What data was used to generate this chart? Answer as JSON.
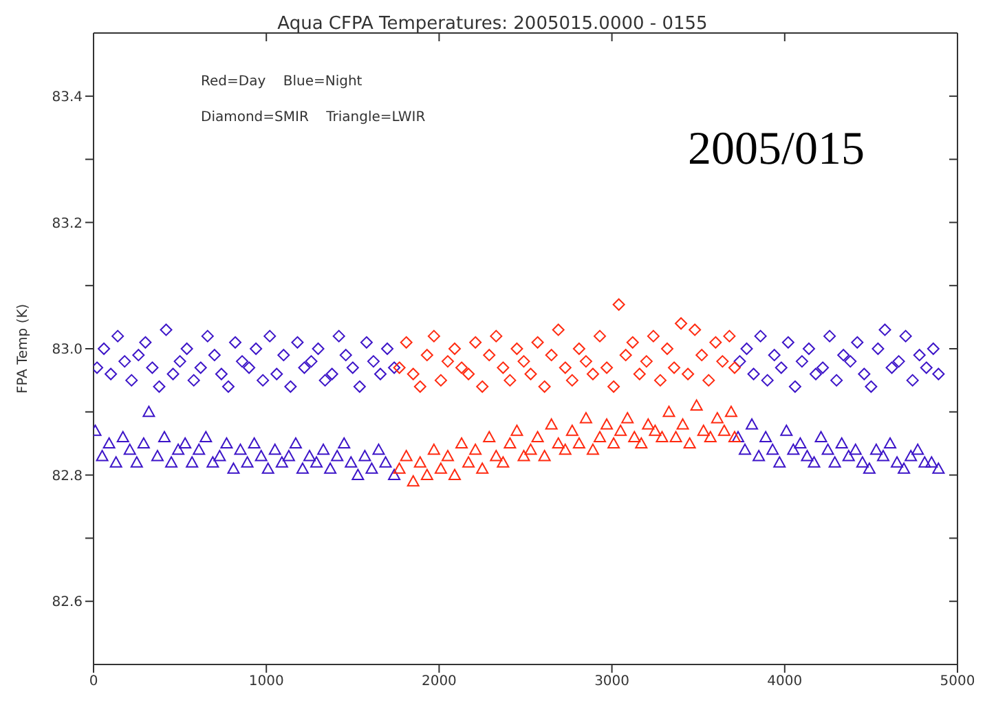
{
  "chart_data": {
    "type": "scatter",
    "title": "Aqua CFPA Temperatures: 2005015.0000 - 0155",
    "ylabel": "FPA Temp (K)",
    "annotations": [
      "Red=Day    Blue=Night",
      "Diamond=SMIR    Triangle=LWIR",
      "2005/015"
    ],
    "xlim": [
      0,
      5000
    ],
    "xticks": [
      0,
      1000,
      2000,
      3000,
      4000,
      5000
    ],
    "ylim": [
      82.5,
      83.5
    ],
    "yticks": [
      82.6,
      {
        "value": 82.7,
        "label": null
      },
      82.8,
      {
        "value": 82.9,
        "label": null
      },
      {
        "value": 83.0,
        "label": "83.0"
      },
      {
        "value": 83.1,
        "label": null
      },
      83.2,
      {
        "value": 83.3,
        "label": null
      },
      83.4
    ],
    "grid": false,
    "legend": false,
    "series": [
      {
        "color": "#3c14c8",
        "marker": "diamond",
        "x": [
          20,
          60,
          100,
          140,
          180,
          220,
          260,
          300,
          340,
          380,
          420,
          460,
          500,
          540,
          580,
          620,
          660,
          700,
          740,
          780,
          820,
          860,
          900,
          940,
          980,
          1020,
          1060,
          1100,
          1140,
          1180,
          1220,
          1260,
          1300,
          1340,
          1380,
          1420,
          1460,
          1500,
          1540,
          1580,
          1620,
          1660,
          1700,
          1740,
          3740,
          3780,
          3820,
          3860,
          3900,
          3940,
          3980,
          4020,
          4060,
          4100,
          4140,
          4180,
          4220,
          4260,
          4300,
          4340,
          4380,
          4420,
          4460,
          4500,
          4540,
          4580,
          4620,
          4660,
          4700,
          4740,
          4780,
          4820,
          4860,
          4890
        ],
        "values": [
          82.97,
          83.0,
          82.96,
          83.02,
          82.98,
          82.95,
          82.99,
          83.01,
          82.97,
          82.94,
          83.03,
          82.96,
          82.98,
          83.0,
          82.95,
          82.97,
          83.02,
          82.99,
          82.96,
          82.94,
          83.01,
          82.98,
          82.97,
          83.0,
          82.95,
          83.02,
          82.96,
          82.99,
          82.94,
          83.01,
          82.97,
          82.98,
          83.0,
          82.95,
          82.96,
          83.02,
          82.99,
          82.97,
          82.94,
          83.01,
          82.98,
          82.96,
          83.0,
          82.97,
          82.98,
          83.0,
          82.96,
          83.02,
          82.95,
          82.99,
          82.97,
          83.01,
          82.94,
          82.98,
          83.0,
          82.96,
          82.97,
          83.02,
          82.95,
          82.99,
          82.98,
          83.01,
          82.96,
          82.94,
          83.0,
          83.03,
          82.97,
          82.98,
          83.02,
          82.95,
          82.99,
          82.97,
          83.0,
          82.96
        ]
      },
      {
        "color": "#ff2a10",
        "marker": "diamond",
        "x": [
          1770,
          1810,
          1850,
          1890,
          1930,
          1970,
          2010,
          2050,
          2090,
          2130,
          2170,
          2210,
          2250,
          2290,
          2330,
          2370,
          2410,
          2450,
          2490,
          2530,
          2570,
          2610,
          2650,
          2690,
          2730,
          2770,
          2810,
          2850,
          2890,
          2930,
          2970,
          3010,
          3040,
          3080,
          3120,
          3160,
          3200,
          3240,
          3280,
          3320,
          3360,
          3400,
          3440,
          3480,
          3520,
          3560,
          3600,
          3640,
          3680,
          3710
        ],
        "values": [
          82.97,
          83.01,
          82.96,
          82.94,
          82.99,
          83.02,
          82.95,
          82.98,
          83.0,
          82.97,
          82.96,
          83.01,
          82.94,
          82.99,
          83.02,
          82.97,
          82.95,
          83.0,
          82.98,
          82.96,
          83.01,
          82.94,
          82.99,
          83.03,
          82.97,
          82.95,
          83.0,
          82.98,
          82.96,
          83.02,
          82.97,
          82.94,
          83.07,
          82.99,
          83.01,
          82.96,
          82.98,
          83.02,
          82.95,
          83.0,
          82.97,
          83.04,
          82.96,
          83.03,
          82.99,
          82.95,
          83.01,
          82.98,
          83.02,
          82.97
        ]
      },
      {
        "color": "#3c14c8",
        "marker": "triangle",
        "x": [
          10,
          50,
          90,
          130,
          170,
          210,
          250,
          290,
          320,
          370,
          410,
          450,
          490,
          530,
          570,
          610,
          650,
          690,
          730,
          770,
          810,
          850,
          890,
          930,
          970,
          1010,
          1050,
          1090,
          1130,
          1170,
          1210,
          1250,
          1290,
          1330,
          1370,
          1410,
          1450,
          1490,
          1530,
          1570,
          1610,
          1650,
          1690,
          1740,
          3730,
          3770,
          3810,
          3850,
          3890,
          3930,
          3970,
          4010,
          4050,
          4090,
          4130,
          4170,
          4210,
          4250,
          4290,
          4330,
          4370,
          4410,
          4450,
          4490,
          4530,
          4570,
          4610,
          4650,
          4690,
          4730,
          4770,
          4810,
          4850,
          4890
        ],
        "values": [
          82.87,
          82.83,
          82.85,
          82.82,
          82.86,
          82.84,
          82.82,
          82.85,
          82.9,
          82.83,
          82.86,
          82.82,
          82.84,
          82.85,
          82.82,
          82.84,
          82.86,
          82.82,
          82.83,
          82.85,
          82.81,
          82.84,
          82.82,
          82.85,
          82.83,
          82.81,
          82.84,
          82.82,
          82.83,
          82.85,
          82.81,
          82.83,
          82.82,
          82.84,
          82.81,
          82.83,
          82.85,
          82.82,
          82.8,
          82.83,
          82.81,
          82.84,
          82.82,
          82.8,
          82.86,
          82.84,
          82.88,
          82.83,
          82.86,
          82.84,
          82.82,
          82.87,
          82.84,
          82.85,
          82.83,
          82.82,
          82.86,
          82.84,
          82.82,
          82.85,
          82.83,
          82.84,
          82.82,
          82.81,
          82.84,
          82.83,
          82.85,
          82.82,
          82.81,
          82.83,
          82.84,
          82.82,
          82.82,
          82.81
        ]
      },
      {
        "color": "#ff2a10",
        "marker": "triangle",
        "x": [
          1770,
          1810,
          1850,
          1890,
          1930,
          1970,
          2010,
          2050,
          2090,
          2130,
          2170,
          2210,
          2250,
          2290,
          2330,
          2370,
          2410,
          2450,
          2490,
          2530,
          2570,
          2610,
          2650,
          2690,
          2730,
          2770,
          2810,
          2850,
          2890,
          2930,
          2970,
          3010,
          3050,
          3090,
          3130,
          3170,
          3210,
          3250,
          3290,
          3330,
          3370,
          3410,
          3450,
          3490,
          3530,
          3570,
          3610,
          3650,
          3690,
          3710
        ],
        "values": [
          82.81,
          82.83,
          82.79,
          82.82,
          82.8,
          82.84,
          82.81,
          82.83,
          82.8,
          82.85,
          82.82,
          82.84,
          82.81,
          82.86,
          82.83,
          82.82,
          82.85,
          82.87,
          82.83,
          82.84,
          82.86,
          82.83,
          82.88,
          82.85,
          82.84,
          82.87,
          82.85,
          82.89,
          82.84,
          82.86,
          82.88,
          82.85,
          82.87,
          82.89,
          82.86,
          82.85,
          82.88,
          82.87,
          82.86,
          82.9,
          82.86,
          82.88,
          82.85,
          82.91,
          82.87,
          82.86,
          82.89,
          82.87,
          82.9,
          82.86
        ]
      }
    ]
  }
}
